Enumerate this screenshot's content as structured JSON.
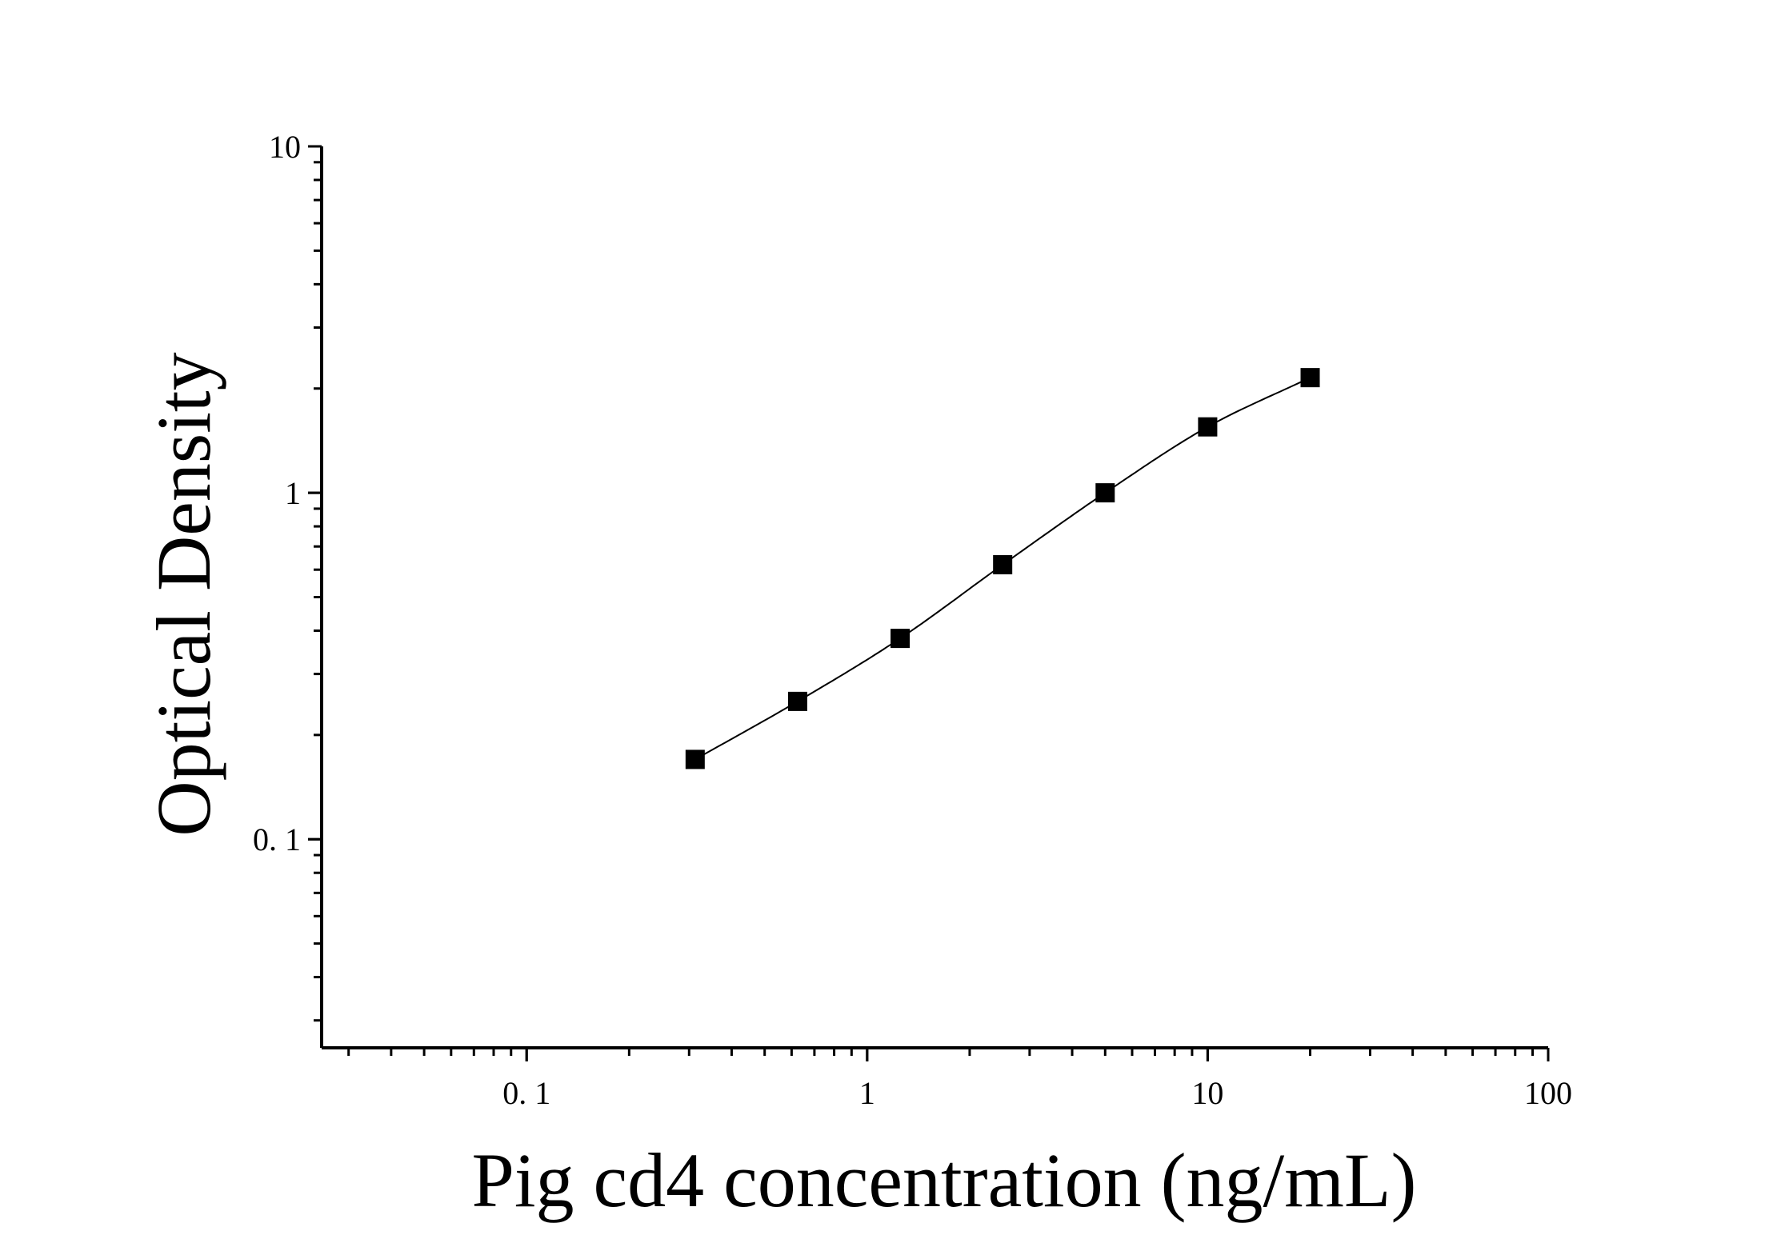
{
  "chart_data": {
    "type": "scatter",
    "xlabel": "Pig cd4 concentration (ng/mL)",
    "ylabel": "Optical Density",
    "x_scale": "log",
    "y_scale": "log",
    "xlim": [
      0.025,
      100
    ],
    "ylim": [
      0.025,
      10
    ],
    "x_ticks": [
      {
        "value": 0.1,
        "label": "0. 1"
      },
      {
        "value": 1,
        "label": "1"
      },
      {
        "value": 10,
        "label": "10"
      },
      {
        "value": 100,
        "label": "100"
      }
    ],
    "y_ticks": [
      {
        "value": 0.1,
        "label": "0. 1"
      },
      {
        "value": 1,
        "label": "1"
      },
      {
        "value": 10,
        "label": "10"
      }
    ],
    "grid": false,
    "series": [
      {
        "x": [
          0.3125,
          0.625,
          1.25,
          2.5,
          5,
          10,
          20
        ],
        "y": [
          0.17,
          0.25,
          0.38,
          0.62,
          1.0,
          1.55,
          2.15
        ],
        "marker": "square",
        "fit_line": true,
        "color": "#000000"
      }
    ]
  }
}
